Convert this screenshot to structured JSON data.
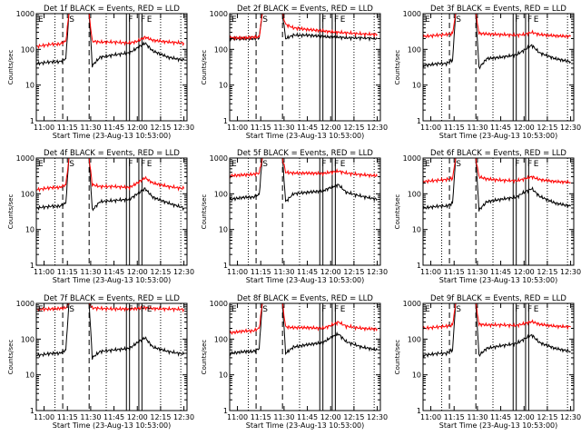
{
  "chart_data": [
    {
      "type": "line",
      "title": "Det 1f BLACK = Events, RED = LLD",
      "xlabel": "Start Time (23-Aug-13 10:53:00)",
      "ylabel": "Counts/sec",
      "xlim": [
        "10:55",
        "12:32"
      ],
      "ylim": [
        1,
        1000
      ],
      "yscale": "log",
      "xticks": [
        "11:00",
        "11:15",
        "11:30",
        "11:45",
        "12:00",
        "12:15",
        "12:30"
      ],
      "yticks": [
        "1",
        "10",
        "100",
        "1000"
      ],
      "markers": [
        "E",
        "S",
        "F",
        "F",
        "E"
      ],
      "series": [
        {
          "color": "#000000",
          "x": [
            "10:55",
            "11:05",
            "11:10",
            "11:14",
            "11:16",
            "11:29",
            "11:31",
            "11:36",
            "11:45",
            "11:55",
            "12:00",
            "12:05",
            "12:10",
            "12:20",
            "12:30"
          ],
          "y": [
            40,
            45,
            45,
            55,
            1000,
            1000,
            35,
            60,
            70,
            80,
            110,
            150,
            90,
            60,
            50
          ]
        },
        {
          "color": "#ff0000",
          "x": [
            "10:55",
            "11:05",
            "11:10",
            "11:14",
            "11:16",
            "11:29",
            "11:31",
            "11:36",
            "11:45",
            "11:55",
            "12:00",
            "12:05",
            "12:10",
            "12:20",
            "12:30"
          ],
          "y": [
            120,
            140,
            140,
            170,
            1000,
            1000,
            170,
            160,
            160,
            150,
            170,
            220,
            180,
            160,
            150
          ]
        }
      ]
    },
    {
      "type": "line",
      "title": "Det 2f BLACK = Events, RED = LLD",
      "xlabel": "Start Time (23-Aug-13 10:53:00)",
      "ylabel": "Counts/sec",
      "xlim": [
        "10:55",
        "12:32"
      ],
      "ylim": [
        1,
        1000
      ],
      "yscale": "log",
      "xticks": [
        "11:00",
        "11:15",
        "11:30",
        "11:45",
        "12:00",
        "12:15",
        "12:30"
      ],
      "yticks": [
        "1",
        "10",
        "100",
        "1000"
      ],
      "markers": [
        "E",
        "S",
        "F",
        "F",
        "E"
      ],
      "series": [
        {
          "color": "#000000",
          "x": [
            "10:55",
            "11:05",
            "11:10",
            "11:14",
            "11:16",
            "11:29",
            "11:31",
            "11:36",
            "11:45",
            "11:55",
            "12:00",
            "12:05",
            "12:10",
            "12:20",
            "12:30"
          ],
          "y": [
            200,
            200,
            200,
            210,
            1000,
            1000,
            200,
            250,
            250,
            230,
            220,
            220,
            210,
            210,
            200
          ]
        },
        {
          "color": "#ff0000",
          "x": [
            "10:55",
            "11:05",
            "11:10",
            "11:14",
            "11:16",
            "11:29",
            "11:31",
            "11:36",
            "11:45",
            "11:55",
            "12:00",
            "12:05",
            "12:10",
            "12:20",
            "12:30"
          ],
          "y": [
            210,
            210,
            220,
            220,
            1000,
            1000,
            500,
            400,
            360,
            330,
            310,
            300,
            290,
            270,
            260
          ]
        }
      ]
    },
    {
      "type": "line",
      "title": "Det 3f BLACK = Events, RED = LLD",
      "xlabel": "Start Time (23-Aug-13 10:53:00)",
      "ylabel": "Counts/sec",
      "xlim": [
        "10:55",
        "12:32"
      ],
      "ylim": [
        1,
        1000
      ],
      "yscale": "log",
      "xticks": [
        "11:00",
        "11:15",
        "11:30",
        "11:45",
        "12:00",
        "12:15",
        "12:30"
      ],
      "yticks": [
        "1",
        "10",
        "100",
        "1000"
      ],
      "markers": [
        "E",
        "S",
        "F",
        "F",
        "E"
      ],
      "series": [
        {
          "color": "#000000",
          "x": [
            "10:55",
            "11:05",
            "11:10",
            "11:14",
            "11:16",
            "11:29",
            "11:31",
            "11:36",
            "11:45",
            "11:55",
            "12:00",
            "12:05",
            "12:10",
            "12:20",
            "12:30"
          ],
          "y": [
            35,
            40,
            40,
            50,
            1000,
            1000,
            30,
            55,
            60,
            70,
            95,
            130,
            80,
            55,
            45
          ]
        },
        {
          "color": "#ff0000",
          "x": [
            "10:55",
            "11:05",
            "11:10",
            "11:14",
            "11:16",
            "11:29",
            "11:31",
            "11:36",
            "11:45",
            "11:55",
            "12:00",
            "12:05",
            "12:10",
            "12:20",
            "12:30"
          ],
          "y": [
            230,
            250,
            260,
            280,
            1000,
            1000,
            280,
            270,
            260,
            250,
            260,
            300,
            260,
            240,
            230
          ]
        }
      ]
    },
    {
      "type": "line",
      "title": "Det 4f BLACK = Events, RED = LLD",
      "xlabel": "Start Time (23-Aug-13 10:53:00)",
      "ylabel": "Counts/sec",
      "xlim": [
        "10:55",
        "12:32"
      ],
      "ylim": [
        1,
        1000
      ],
      "yscale": "log",
      "xticks": [
        "11:00",
        "11:15",
        "11:30",
        "11:45",
        "12:00",
        "12:15",
        "12:30"
      ],
      "yticks": [
        "1",
        "10",
        "100",
        "1000"
      ],
      "markers": [
        "E",
        "S",
        "F",
        "F",
        "E"
      ],
      "series": [
        {
          "color": "#000000",
          "x": [
            "10:55",
            "11:05",
            "11:10",
            "11:14",
            "11:16",
            "11:29",
            "11:31",
            "11:36",
            "11:45",
            "11:55",
            "12:00",
            "12:05",
            "12:10",
            "12:20",
            "12:30"
          ],
          "y": [
            40,
            45,
            45,
            55,
            1000,
            1000,
            35,
            60,
            65,
            70,
            100,
            140,
            80,
            55,
            40
          ]
        },
        {
          "color": "#ff0000",
          "x": [
            "10:55",
            "11:05",
            "11:10",
            "11:14",
            "11:16",
            "11:29",
            "11:31",
            "11:36",
            "11:45",
            "11:55",
            "12:00",
            "12:05",
            "12:10",
            "12:20",
            "12:30"
          ],
          "y": [
            130,
            150,
            150,
            180,
            1000,
            1000,
            180,
            160,
            160,
            150,
            200,
            280,
            200,
            160,
            140
          ]
        }
      ]
    },
    {
      "type": "line",
      "title": "Det 5f BLACK = Events, RED = LLD",
      "xlabel": "Start Time (23-Aug-13 10:53:00)",
      "ylabel": "Counts/sec",
      "xlim": [
        "10:55",
        "12:32"
      ],
      "ylim": [
        1,
        1000
      ],
      "yscale": "log",
      "xticks": [
        "11:00",
        "11:15",
        "11:30",
        "11:45",
        "12:00",
        "12:15",
        "12:30"
      ],
      "yticks": [
        "1",
        "10",
        "100",
        "1000"
      ],
      "markers": [
        "E",
        "S",
        "F",
        "F",
        "E"
      ],
      "series": [
        {
          "color": "#000000",
          "x": [
            "10:55",
            "11:05",
            "11:10",
            "11:14",
            "11:16",
            "11:29",
            "11:31",
            "11:36",
            "11:45",
            "11:55",
            "12:00",
            "12:05",
            "12:10",
            "12:20",
            "12:30"
          ],
          "y": [
            70,
            80,
            80,
            95,
            1000,
            1000,
            60,
            100,
            110,
            120,
            150,
            180,
            110,
            85,
            70
          ]
        },
        {
          "color": "#ff0000",
          "x": [
            "10:55",
            "11:05",
            "11:10",
            "11:14",
            "11:16",
            "11:29",
            "11:31",
            "11:36",
            "11:45",
            "11:55",
            "12:00",
            "12:05",
            "12:10",
            "12:20",
            "12:30"
          ],
          "y": [
            320,
            340,
            350,
            380,
            1000,
            1000,
            400,
            380,
            380,
            370,
            400,
            430,
            380,
            340,
            320
          ]
        }
      ]
    },
    {
      "type": "line",
      "title": "Det 6f BLACK = Events, RED = LLD",
      "xlabel": "Start Time (23-Aug-13 10:53:00)",
      "ylabel": "Counts/sec",
      "xlim": [
        "10:55",
        "12:32"
      ],
      "ylim": [
        1,
        1000
      ],
      "yscale": "log",
      "xticks": [
        "11:00",
        "11:15",
        "11:30",
        "11:45",
        "12:00",
        "12:15",
        "12:30"
      ],
      "yticks": [
        "1",
        "10",
        "100",
        "1000"
      ],
      "markers": [
        "E",
        "S",
        "F",
        "F",
        "E"
      ],
      "series": [
        {
          "color": "#000000",
          "x": [
            "10:55",
            "11:05",
            "11:10",
            "11:14",
            "11:16",
            "11:29",
            "11:31",
            "11:36",
            "11:45",
            "11:55",
            "12:00",
            "12:05",
            "12:10",
            "12:20",
            "12:30"
          ],
          "y": [
            40,
            45,
            45,
            55,
            1000,
            1000,
            35,
            60,
            70,
            80,
            110,
            140,
            85,
            55,
            45
          ]
        },
        {
          "color": "#ff0000",
          "x": [
            "10:55",
            "11:05",
            "11:10",
            "11:14",
            "11:16",
            "11:29",
            "11:31",
            "11:36",
            "11:45",
            "11:55",
            "12:00",
            "12:05",
            "12:10",
            "12:20",
            "12:30"
          ],
          "y": [
            220,
            240,
            250,
            270,
            1000,
            1000,
            300,
            260,
            240,
            230,
            260,
            300,
            250,
            220,
            210
          ]
        }
      ]
    },
    {
      "type": "line",
      "title": "Det 7f BLACK = Events, RED = LLD",
      "xlabel": "Start Time (23-Aug-13 10:53:00)",
      "ylabel": "Counts/sec",
      "xlim": [
        "10:55",
        "12:32"
      ],
      "ylim": [
        1,
        1000
      ],
      "yscale": "log",
      "xticks": [
        "11:00",
        "11:15",
        "11:30",
        "11:45",
        "12:00",
        "12:15",
        "12:30"
      ],
      "yticks": [
        "1",
        "10",
        "100",
        "1000"
      ],
      "markers": [
        "E",
        "S",
        "F",
        "F",
        "E"
      ],
      "series": [
        {
          "color": "#000000",
          "x": [
            "10:55",
            "11:05",
            "11:10",
            "11:14",
            "11:16",
            "11:29",
            "11:31",
            "11:36",
            "11:45",
            "11:55",
            "12:00",
            "12:05",
            "12:10",
            "12:20",
            "12:30"
          ],
          "y": [
            35,
            40,
            40,
            50,
            1000,
            1000,
            30,
            45,
            50,
            55,
            80,
            110,
            60,
            45,
            38
          ]
        },
        {
          "color": "#ff0000",
          "x": [
            "10:55",
            "11:05",
            "11:10",
            "11:14",
            "11:16",
            "11:29",
            "11:31",
            "11:36",
            "11:45",
            "11:55",
            "12:00",
            "12:05",
            "12:10",
            "12:20",
            "12:30"
          ],
          "y": [
            680,
            700,
            720,
            750,
            1000,
            1000,
            750,
            720,
            700,
            700,
            720,
            760,
            720,
            700,
            680
          ]
        }
      ]
    },
    {
      "type": "line",
      "title": "Det 8f BLACK = Events, RED = LLD",
      "xlabel": "Start Time (23-Aug-13 10:53:00)",
      "ylabel": "Counts/sec",
      "xlim": [
        "10:55",
        "12:32"
      ],
      "ylim": [
        1,
        1000
      ],
      "yscale": "log",
      "xticks": [
        "11:00",
        "11:15",
        "11:30",
        "11:45",
        "12:00",
        "12:15",
        "12:30"
      ],
      "yticks": [
        "1",
        "10",
        "100",
        "1000"
      ],
      "markers": [
        "E",
        "S",
        "F",
        "F",
        "E"
      ],
      "series": [
        {
          "color": "#000000",
          "x": [
            "10:55",
            "11:05",
            "11:10",
            "11:14",
            "11:16",
            "11:29",
            "11:31",
            "11:36",
            "11:45",
            "11:55",
            "12:00",
            "12:05",
            "12:10",
            "12:20",
            "12:30"
          ],
          "y": [
            40,
            45,
            45,
            55,
            1000,
            1000,
            40,
            60,
            70,
            80,
            110,
            140,
            85,
            60,
            50
          ]
        },
        {
          "color": "#ff0000",
          "x": [
            "10:55",
            "11:05",
            "11:10",
            "11:14",
            "11:16",
            "11:29",
            "11:31",
            "11:36",
            "11:45",
            "11:55",
            "12:00",
            "12:05",
            "12:10",
            "12:20",
            "12:30"
          ],
          "y": [
            150,
            170,
            170,
            200,
            1000,
            1000,
            220,
            210,
            210,
            200,
            240,
            300,
            230,
            200,
            190
          ]
        }
      ]
    },
    {
      "type": "line",
      "title": "Det 9f BLACK = Events, RED = LLD",
      "xlabel": "Start Time (23-Aug-13 10:53:00)",
      "ylabel": "Counts/sec",
      "xlim": [
        "10:55",
        "12:32"
      ],
      "ylim": [
        1,
        1000
      ],
      "yscale": "log",
      "xticks": [
        "11:00",
        "11:15",
        "11:30",
        "11:45",
        "12:00",
        "12:15",
        "12:30"
      ],
      "yticks": [
        "1",
        "10",
        "100",
        "1000"
      ],
      "markers": [
        "E",
        "S",
        "F",
        "F",
        "E"
      ],
      "series": [
        {
          "color": "#000000",
          "x": [
            "10:55",
            "11:05",
            "11:10",
            "11:14",
            "11:16",
            "11:29",
            "11:31",
            "11:36",
            "11:45",
            "11:55",
            "12:00",
            "12:05",
            "12:10",
            "12:20",
            "12:30"
          ],
          "y": [
            35,
            40,
            40,
            50,
            1000,
            1000,
            35,
            55,
            65,
            75,
            100,
            130,
            80,
            55,
            45
          ]
        },
        {
          "color": "#ff0000",
          "x": [
            "10:55",
            "11:05",
            "11:10",
            "11:14",
            "11:16",
            "11:29",
            "11:31",
            "11:36",
            "11:45",
            "11:55",
            "12:00",
            "12:05",
            "12:10",
            "12:20",
            "12:30"
          ],
          "y": [
            200,
            220,
            230,
            250,
            1000,
            1000,
            260,
            250,
            250,
            240,
            270,
            310,
            260,
            230,
            220
          ]
        }
      ]
    }
  ]
}
